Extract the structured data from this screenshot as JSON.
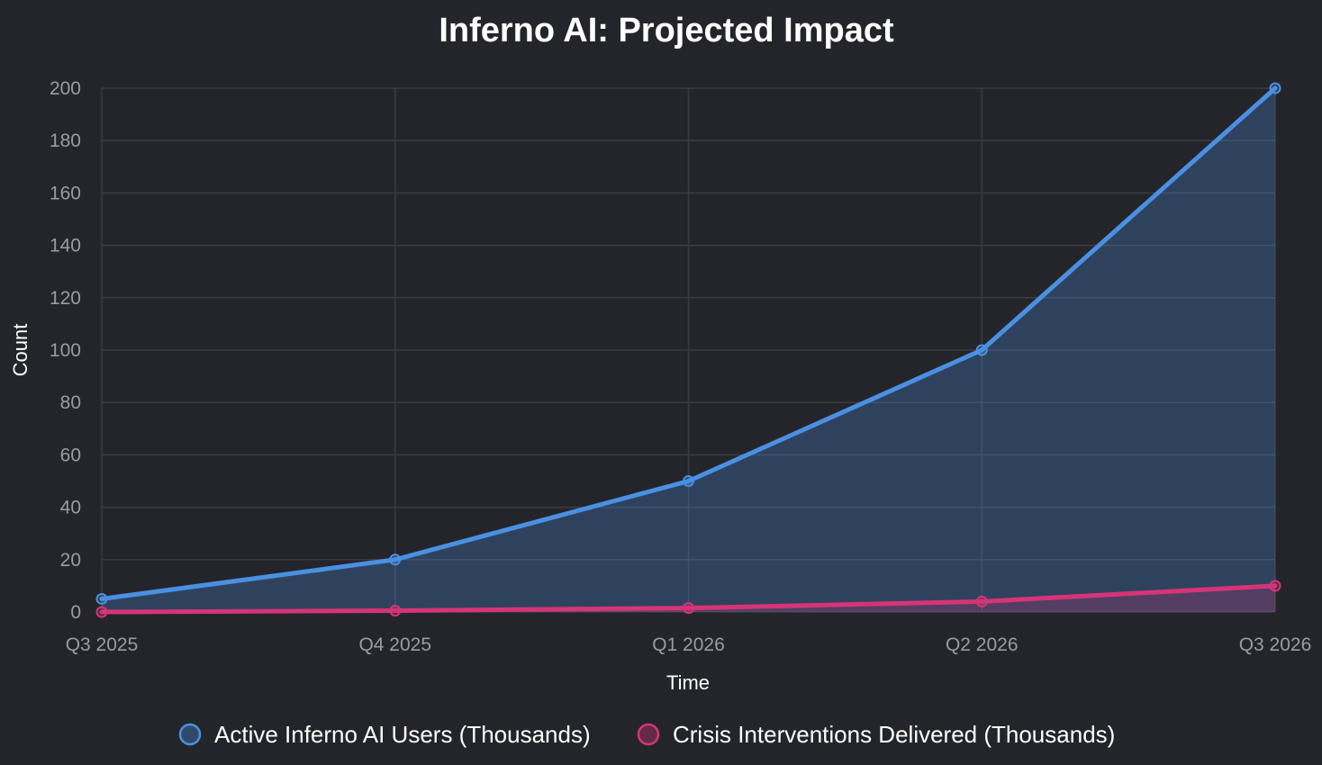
{
  "colors": {
    "background": "#24252a",
    "grid": "#3a3c43",
    "users": "#4a90e2",
    "interventions": "#d63477"
  },
  "chart_data": {
    "type": "area",
    "title": "Inferno AI: Projected Impact",
    "xlabel": "Time",
    "ylabel": "Count",
    "ylim": [
      0,
      200
    ],
    "ytick_step": 20,
    "grid": true,
    "legend_position": "bottom",
    "categories": [
      "Q3 2025",
      "Q4 2025",
      "Q1 2026",
      "Q2 2026",
      "Q3 2026"
    ],
    "series": [
      {
        "name": "Active Inferno AI Users (Thousands)",
        "color": "#4a90e2",
        "values": [
          5,
          20,
          50,
          100,
          200
        ]
      },
      {
        "name": "Crisis Interventions Delivered (Thousands)",
        "color": "#d63477",
        "values": [
          0,
          0.5,
          1.5,
          4,
          10
        ]
      }
    ]
  }
}
